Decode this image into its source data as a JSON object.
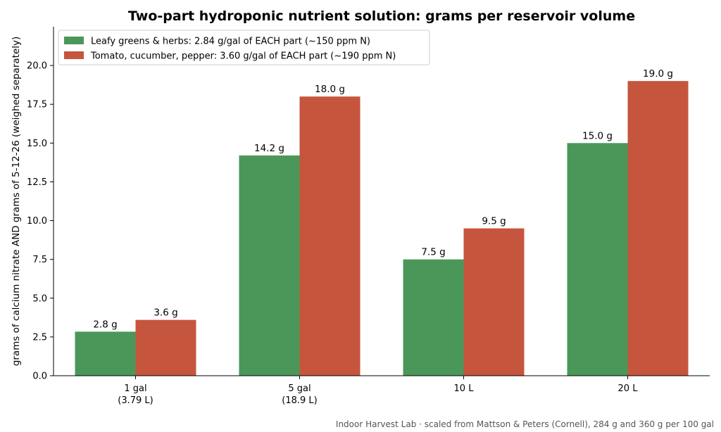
{
  "chart_data": {
    "type": "bar",
    "title": "Two-part hydroponic nutrient solution: grams per reservoir volume",
    "xlabel": "",
    "ylabel": "grams of calcium nitrate AND grams of 5-12-26 (weighed separately)",
    "ylim": [
      0,
      22.5
    ],
    "yticks": [
      "0.0",
      "2.5",
      "5.0",
      "7.5",
      "10.0",
      "12.5",
      "15.0",
      "17.5",
      "20.0"
    ],
    "categories": [
      [
        "1 gal",
        "(3.79 L)"
      ],
      [
        "5 gal",
        "(18.9 L)"
      ],
      [
        "10 L"
      ],
      [
        "20 L"
      ]
    ],
    "series": [
      {
        "name": "Leafy greens & herbs: 2.84 g/gal of EACH part (~150 ppm N)",
        "color": "#4b975a",
        "values": [
          2.84,
          14.2,
          7.5,
          15.0
        ],
        "labels": [
          "2.8 g",
          "14.2 g",
          "7.5 g",
          "15.0 g"
        ]
      },
      {
        "name": "Tomato, cucumber, pepper: 3.60 g/gal of EACH part (~190 ppm N)",
        "color": "#c6553d",
        "values": [
          3.6,
          18.0,
          9.5,
          19.0
        ],
        "labels": [
          "3.6 g",
          "18.0 g",
          "9.5 g",
          "19.0 g"
        ]
      }
    ],
    "legend": "top-left",
    "grid": false,
    "footer": "Indoor Harvest Lab · scaled from Mattson & Peters (Cornell), 284 g and 360 g per 100 gal"
  }
}
